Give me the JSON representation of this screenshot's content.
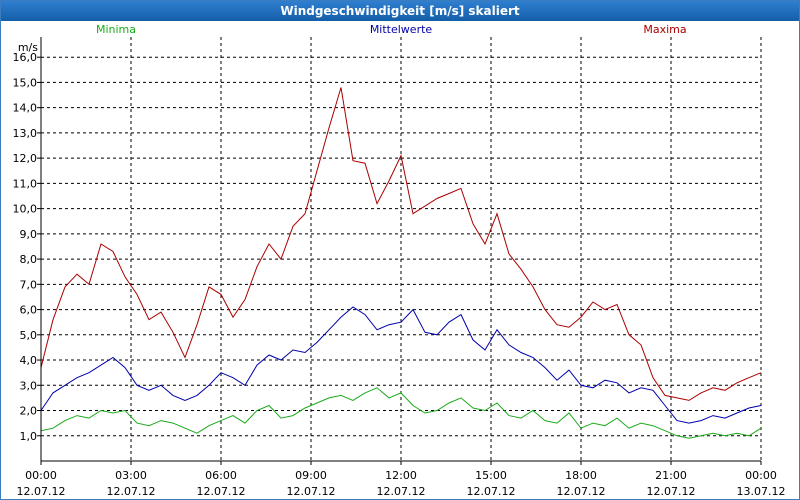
{
  "window": {
    "title": "Windgeschwindigkeit [m/s] skaliert"
  },
  "colors": {
    "minima": "#1aaa1a",
    "mittel": "#0000aa",
    "maxima": "#aa0000",
    "grid": "#000000",
    "axis": "#000000"
  },
  "chart_data": {
    "type": "line",
    "title": "Windgeschwindigkeit [m/s] skaliert",
    "ylabel": "m/s",
    "xlabel": "",
    "ylim": [
      0,
      16.8
    ],
    "xlim": [
      0,
      24
    ],
    "y_ticks": [
      "1,0",
      "2,0",
      "3,0",
      "4,0",
      "5,0",
      "6,0",
      "7,0",
      "8,0",
      "9,0",
      "10,0",
      "11,0",
      "12,0",
      "13,0",
      "14,0",
      "15,0",
      "16,0"
    ],
    "x_ticks": [
      {
        "time": "00:00",
        "date": "12.07.12"
      },
      {
        "time": "03:00",
        "date": "12.07.12"
      },
      {
        "time": "06:00",
        "date": "12.07.12"
      },
      {
        "time": "09:00",
        "date": "12.07.12"
      },
      {
        "time": "12:00",
        "date": "12.07.12"
      },
      {
        "time": "15:00",
        "date": "12.07.12"
      },
      {
        "time": "18:00",
        "date": "12.07.12"
      },
      {
        "time": "21:00",
        "date": "12.07.12"
      },
      {
        "time": "00:00",
        "date": "13.07.12"
      }
    ],
    "series": [
      {
        "name": "Minima",
        "x": [
          0.0,
          0.4,
          0.8,
          1.2,
          1.6,
          2.0,
          2.4,
          2.8,
          3.2,
          3.6,
          4.0,
          4.4,
          4.8,
          5.2,
          5.6,
          6.0,
          6.4,
          6.8,
          7.2,
          7.6,
          8.0,
          8.4,
          8.8,
          9.2,
          9.6,
          10.0,
          10.4,
          10.8,
          11.2,
          11.6,
          12.0,
          12.4,
          12.8,
          13.2,
          13.6,
          14.0,
          14.4,
          14.8,
          15.2,
          15.6,
          16.0,
          16.4,
          16.8,
          17.2,
          17.6,
          18.0,
          18.4,
          18.8,
          19.2,
          19.6,
          20.0,
          20.4,
          20.8,
          21.2,
          21.6,
          22.0,
          22.4,
          22.8,
          23.2,
          23.6,
          24.0
        ],
        "values": [
          1.2,
          1.3,
          1.6,
          1.8,
          1.7,
          2.0,
          1.9,
          2.0,
          1.5,
          1.4,
          1.6,
          1.5,
          1.3,
          1.1,
          1.4,
          1.6,
          1.8,
          1.5,
          2.0,
          2.2,
          1.7,
          1.8,
          2.1,
          2.3,
          2.5,
          2.6,
          2.4,
          2.7,
          2.9,
          2.5,
          2.7,
          2.2,
          1.9,
          2.0,
          2.3,
          2.5,
          2.1,
          2.0,
          2.3,
          1.8,
          1.7,
          2.0,
          1.6,
          1.5,
          1.9,
          1.3,
          1.5,
          1.4,
          1.7,
          1.3,
          1.5,
          1.4,
          1.2,
          1.0,
          0.9,
          1.0,
          1.1,
          1.0,
          1.1,
          1.0,
          1.3
        ]
      },
      {
        "name": "Mittelwerte",
        "x": [
          0.0,
          0.4,
          0.8,
          1.2,
          1.6,
          2.0,
          2.4,
          2.8,
          3.2,
          3.6,
          4.0,
          4.4,
          4.8,
          5.2,
          5.6,
          6.0,
          6.4,
          6.8,
          7.2,
          7.6,
          8.0,
          8.4,
          8.8,
          9.2,
          9.6,
          10.0,
          10.4,
          10.8,
          11.2,
          11.6,
          12.0,
          12.4,
          12.8,
          13.2,
          13.6,
          14.0,
          14.4,
          14.8,
          15.2,
          15.6,
          16.0,
          16.4,
          16.8,
          17.2,
          17.6,
          18.0,
          18.4,
          18.8,
          19.2,
          19.6,
          20.0,
          20.4,
          20.8,
          21.2,
          21.6,
          22.0,
          22.4,
          22.8,
          23.2,
          23.6,
          24.0
        ],
        "values": [
          2.0,
          2.7,
          3.0,
          3.3,
          3.5,
          3.8,
          4.1,
          3.7,
          3.0,
          2.8,
          3.0,
          2.6,
          2.4,
          2.6,
          3.0,
          3.5,
          3.3,
          3.0,
          3.8,
          4.2,
          4.0,
          4.4,
          4.3,
          4.7,
          5.2,
          5.7,
          6.1,
          5.8,
          5.2,
          5.4,
          5.5,
          6.0,
          5.1,
          5.0,
          5.5,
          5.8,
          4.8,
          4.4,
          5.2,
          4.6,
          4.3,
          4.1,
          3.7,
          3.2,
          3.6,
          3.0,
          2.9,
          3.2,
          3.1,
          2.7,
          2.9,
          2.8,
          2.2,
          1.6,
          1.5,
          1.6,
          1.8,
          1.7,
          1.9,
          2.1,
          2.2
        ]
      },
      {
        "name": "Maxima",
        "x": [
          0.0,
          0.4,
          0.8,
          1.2,
          1.6,
          2.0,
          2.4,
          2.8,
          3.2,
          3.6,
          4.0,
          4.4,
          4.8,
          5.2,
          5.6,
          6.0,
          6.4,
          6.8,
          7.2,
          7.6,
          8.0,
          8.4,
          8.8,
          9.2,
          9.6,
          10.0,
          10.4,
          10.8,
          11.2,
          11.6,
          12.0,
          12.4,
          12.8,
          13.2,
          13.6,
          14.0,
          14.4,
          14.8,
          15.2,
          15.6,
          16.0,
          16.4,
          16.8,
          17.2,
          17.6,
          18.0,
          18.4,
          18.8,
          19.2,
          19.6,
          20.0,
          20.4,
          20.8,
          21.2,
          21.6,
          22.0,
          22.4,
          22.8,
          23.2,
          23.6,
          24.0
        ],
        "values": [
          3.7,
          5.6,
          6.9,
          7.4,
          7.0,
          8.6,
          8.3,
          7.3,
          6.6,
          5.6,
          5.9,
          5.1,
          4.1,
          5.4,
          6.9,
          6.6,
          5.7,
          6.4,
          7.7,
          8.6,
          8.0,
          9.3,
          9.8,
          11.5,
          13.2,
          14.8,
          11.9,
          11.8,
          10.2,
          11.1,
          12.1,
          9.8,
          10.1,
          10.4,
          10.6,
          10.8,
          9.4,
          8.6,
          9.8,
          8.2,
          7.6,
          6.9,
          6.0,
          5.4,
          5.3,
          5.7,
          6.3,
          6.0,
          6.2,
          5.0,
          4.6,
          3.3,
          2.6,
          2.5,
          2.4,
          2.7,
          2.9,
          2.8,
          3.1,
          3.3,
          3.5
        ]
      }
    ],
    "legend": [
      "Minima",
      "Mittelwerte",
      "Maxima"
    ]
  }
}
